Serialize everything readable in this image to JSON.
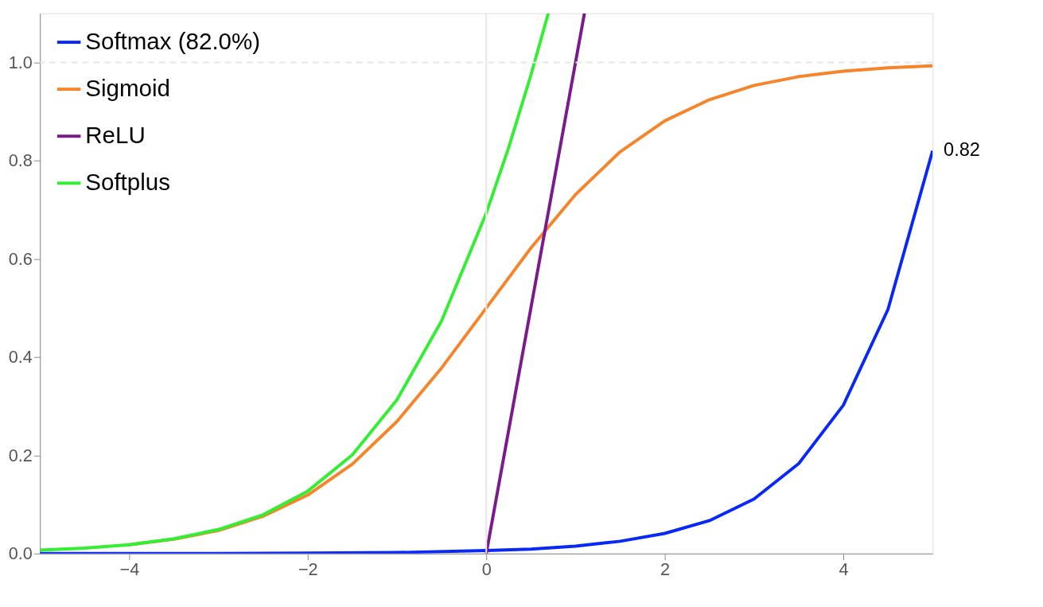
{
  "chart_data": {
    "type": "line",
    "xlim": [
      -5,
      5
    ],
    "ylim": [
      0,
      1.1
    ],
    "xticks": [
      {
        "value": -4,
        "label": "−4"
      },
      {
        "value": -2,
        "label": "−2"
      },
      0,
      2,
      4
    ],
    "yticks": [
      {
        "value": 0,
        "label": "0.0"
      },
      0.2,
      0.4,
      0.6,
      0.8,
      {
        "value": 1,
        "label": "1.0"
      }
    ],
    "legend": "top left",
    "grid": false,
    "marker": "none",
    "line_style": "solid",
    "ref_lines": [
      {
        "axis": "y",
        "value": 1,
        "color": "#e6e6e6",
        "line_style": "dashed"
      },
      {
        "axis": "x",
        "value": 0,
        "color": "#e6e6e6",
        "line_style": "solid"
      }
    ],
    "annotations": [
      {
        "text": "0.82",
        "x": 5,
        "y": 0.82
      }
    ],
    "series": [
      {
        "name": "Softmax (82.0%)",
        "color": "#0a28f5",
        "x": [
          -5,
          -4,
          -3,
          -2,
          -1,
          0,
          0.5,
          1,
          1.5,
          2,
          2.5,
          3,
          3.5,
          4,
          4.5,
          5
        ],
        "values": [
          0.0,
          0.0,
          0.0,
          0.001,
          0.002,
          0.006,
          0.009,
          0.015,
          0.025,
          0.041,
          0.067,
          0.111,
          0.183,
          0.302,
          0.497,
          0.82
        ]
      },
      {
        "name": "Sigmoid",
        "color": "#f5842a",
        "x": [
          -4,
          -3.5,
          -3,
          -2.5,
          -2,
          -1.5,
          -1,
          -0.5,
          0,
          0.5,
          1,
          1.5,
          2,
          2.5,
          3,
          3.5,
          4,
          4.5,
          5
        ],
        "values": [
          0.018,
          0.029,
          0.047,
          0.076,
          0.119,
          0.182,
          0.269,
          0.378,
          0.5,
          0.622,
          0.731,
          0.818,
          0.881,
          0.924,
          0.953,
          0.971,
          0.982,
          0.989,
          0.993
        ]
      },
      {
        "name": "ReLU",
        "color": "#7a1a8c",
        "x": [
          0,
          1.1
        ],
        "values": [
          0,
          1.1
        ]
      },
      {
        "name": "Softplus",
        "color": "#33ee33",
        "x": [
          -5,
          -4.5,
          -4,
          -3.5,
          -3,
          -2.5,
          -2,
          -1.5,
          -1,
          -0.5,
          0,
          0.25,
          0.5,
          0.695
        ],
        "values": [
          0.007,
          0.011,
          0.018,
          0.03,
          0.049,
          0.079,
          0.127,
          0.201,
          0.313,
          0.474,
          0.693,
          0.826,
          0.974,
          1.1
        ]
      }
    ]
  }
}
